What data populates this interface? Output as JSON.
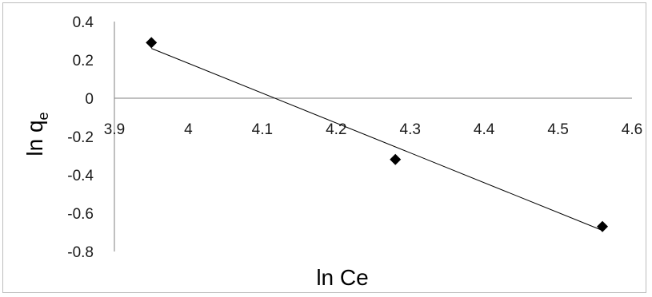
{
  "chart_data": {
    "type": "scatter",
    "title": "",
    "xlabel": "ln Ce",
    "ylabel": "ln q",
    "ylabel_subscript": "e",
    "xlim": [
      3.9,
      4.6
    ],
    "ylim": [
      -0.8,
      0.4
    ],
    "x_ticks": [
      "3.9",
      "4",
      "4.1",
      "4.2",
      "4.3",
      "4.4",
      "4.5",
      "4.6"
    ],
    "y_ticks": [
      "0.4",
      "0.2",
      "0",
      "-0.2",
      "-0.4",
      "-0.6",
      "-0.8"
    ],
    "x_tick_values": [
      3.9,
      4.0,
      4.1,
      4.2,
      4.3,
      4.4,
      4.5,
      4.6
    ],
    "y_tick_values": [
      0.4,
      0.2,
      0.0,
      -0.2,
      -0.4,
      -0.6,
      -0.8
    ],
    "grid": false,
    "legend": "none",
    "series": [
      {
        "points": [
          {
            "x": 3.95,
            "y": 0.29
          },
          {
            "x": 4.28,
            "y": -0.32
          },
          {
            "x": 4.56,
            "y": -0.67
          }
        ],
        "marker": "diamond",
        "color": "#000000"
      }
    ],
    "trendline": {
      "x": [
        3.95,
        4.56
      ],
      "y": [
        0.26,
        -0.69
      ],
      "color": "#000000"
    }
  }
}
